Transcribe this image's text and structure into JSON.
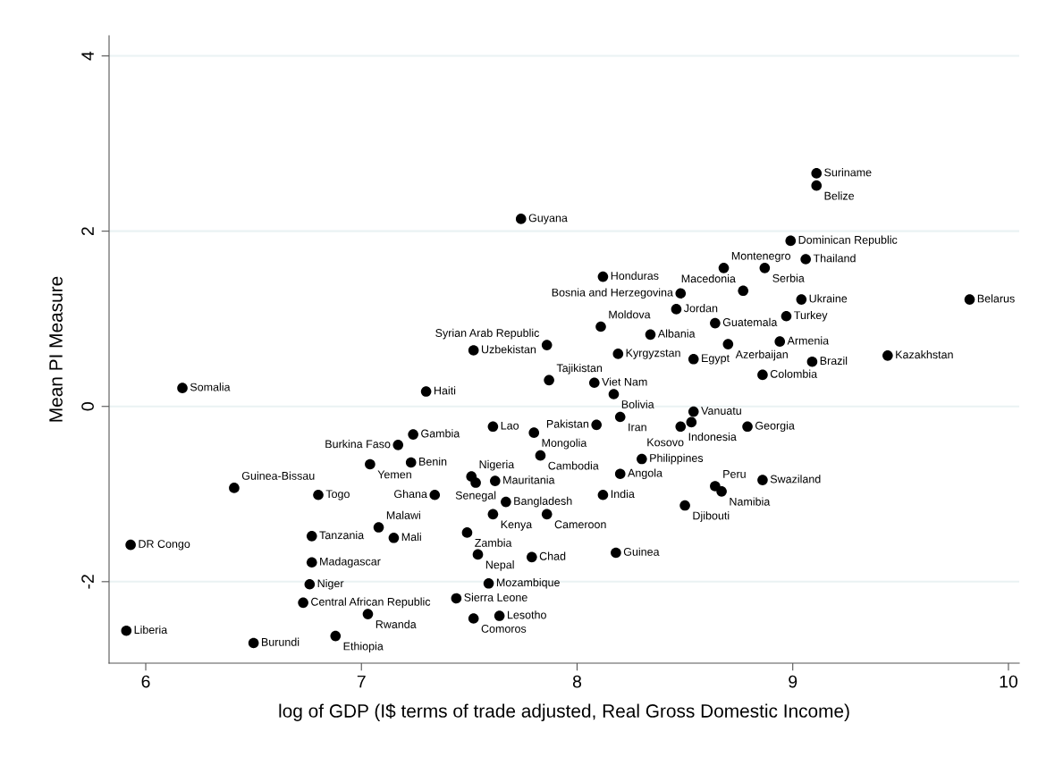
{
  "chart_data": {
    "type": "scatter",
    "xlabel": "log of GDP (I$ terms of trade adjusted, Real Gross Domestic Income)",
    "ylabel": "Mean PI Measure",
    "xlim": [
      5.83,
      10.05
    ],
    "ylim": [
      -2.93,
      4.23
    ],
    "xticks": [
      6,
      7,
      8,
      9,
      10
    ],
    "yticks": [
      -2,
      0,
      2,
      4
    ],
    "grid": "y",
    "marker": "circle",
    "legend": false,
    "series": [
      {
        "color": "#000000",
        "x": [
          9.11,
          9.11,
          7.74,
          8.99,
          9.06,
          8.68,
          8.87,
          8.12,
          8.48,
          8.77,
          9.04,
          9.82,
          8.46,
          8.97,
          8.64,
          8.11,
          8.34,
          8.94,
          8.7,
          7.52,
          7.86,
          8.19,
          8.54,
          9.44,
          9.09,
          8.86,
          7.87,
          8.08,
          8.17,
          6.17,
          7.3,
          8.54,
          8.2,
          8.09,
          7.61,
          7.8,
          8.48,
          8.53,
          8.79,
          7.24,
          7.17,
          7.04,
          7.23,
          7.83,
          8.3,
          7.51,
          7.53,
          7.62,
          8.2,
          8.86,
          6.41,
          6.8,
          7.34,
          8.64,
          8.67,
          8.12,
          7.67,
          8.5,
          7.61,
          7.86,
          7.08,
          7.15,
          6.77,
          7.49,
          5.93,
          7.54,
          7.79,
          8.18,
          6.77,
          7.59,
          6.76,
          7.44,
          6.73,
          7.03,
          7.64,
          7.52,
          5.91,
          6.5,
          6.88
        ],
        "values": [
          2.66,
          2.52,
          2.14,
          1.89,
          1.68,
          1.58,
          1.58,
          1.48,
          1.29,
          1.32,
          1.22,
          1.22,
          1.11,
          1.03,
          0.95,
          0.91,
          0.82,
          0.74,
          0.71,
          0.64,
          0.7,
          0.6,
          0.54,
          0.58,
          0.51,
          0.36,
          0.3,
          0.27,
          0.14,
          0.21,
          0.17,
          -0.06,
          -0.12,
          -0.21,
          -0.23,
          -0.3,
          -0.23,
          -0.18,
          -0.23,
          -0.32,
          -0.44,
          -0.66,
          -0.64,
          -0.56,
          -0.6,
          -0.8,
          -0.87,
          -0.85,
          -0.77,
          -0.84,
          -0.93,
          -1.01,
          -1.01,
          -0.91,
          -0.97,
          -1.01,
          -1.09,
          -1.13,
          -1.23,
          -1.23,
          -1.38,
          -1.5,
          -1.48,
          -1.44,
          -1.58,
          -1.69,
          -1.72,
          -1.67,
          -1.78,
          -2.02,
          -2.03,
          -2.19,
          -2.24,
          -2.37,
          -2.39,
          -2.42,
          -2.56,
          -2.7,
          -2.62
        ]
      }
    ],
    "annotations": [
      {
        "text": "Suriname",
        "x": 9.11,
        "y": 2.66
      },
      {
        "text": "Belize",
        "x": 9.11,
        "y": 2.52
      },
      {
        "text": "Guyana",
        "x": 7.74,
        "y": 2.14
      },
      {
        "text": "Dominican Republic",
        "x": 8.99,
        "y": 1.89
      },
      {
        "text": "Thailand",
        "x": 9.06,
        "y": 1.68
      },
      {
        "text": "Montenegro",
        "x": 8.68,
        "y": 1.58
      },
      {
        "text": "Serbia",
        "x": 8.87,
        "y": 1.58
      },
      {
        "text": "Honduras",
        "x": 8.12,
        "y": 1.48
      },
      {
        "text": "Bosnia and Herzegovina",
        "x": 8.48,
        "y": 1.29
      },
      {
        "text": "Macedonia",
        "x": 8.77,
        "y": 1.32
      },
      {
        "text": "Ukraine",
        "x": 9.04,
        "y": 1.22
      },
      {
        "text": "Belarus",
        "x": 9.82,
        "y": 1.22
      },
      {
        "text": "Jordan",
        "x": 8.46,
        "y": 1.11
      },
      {
        "text": "Turkey",
        "x": 8.97,
        "y": 1.03
      },
      {
        "text": "Guatemala",
        "x": 8.64,
        "y": 0.95
      },
      {
        "text": "Moldova",
        "x": 8.11,
        "y": 0.91
      },
      {
        "text": "Albania",
        "x": 8.34,
        "y": 0.82
      },
      {
        "text": "Armenia",
        "x": 8.94,
        "y": 0.74
      },
      {
        "text": "Azerbaijan",
        "x": 8.7,
        "y": 0.71
      },
      {
        "text": "Uzbekistan",
        "x": 7.52,
        "y": 0.64
      },
      {
        "text": "Syrian Arab Republic",
        "x": 7.86,
        "y": 0.7
      },
      {
        "text": "Kyrgyzstan",
        "x": 8.19,
        "y": 0.6
      },
      {
        "text": "Egypt",
        "x": 8.54,
        "y": 0.54
      },
      {
        "text": "Kazakhstan",
        "x": 9.44,
        "y": 0.58
      },
      {
        "text": "Brazil",
        "x": 9.09,
        "y": 0.51
      },
      {
        "text": "Colombia",
        "x": 8.86,
        "y": 0.36
      },
      {
        "text": "Tajikistan",
        "x": 7.87,
        "y": 0.3
      },
      {
        "text": "Viet Nam",
        "x": 8.08,
        "y": 0.27
      },
      {
        "text": "Bolivia",
        "x": 8.17,
        "y": 0.14
      },
      {
        "text": "Somalia",
        "x": 6.17,
        "y": 0.21
      },
      {
        "text": "Haiti",
        "x": 7.3,
        "y": 0.17
      },
      {
        "text": "Vanuatu",
        "x": 8.54,
        "y": -0.06
      },
      {
        "text": "Iran",
        "x": 8.2,
        "y": -0.12
      },
      {
        "text": "Pakistan",
        "x": 8.09,
        "y": -0.21
      },
      {
        "text": "Lao",
        "x": 7.61,
        "y": -0.23
      },
      {
        "text": "Mongolia",
        "x": 7.8,
        "y": -0.3
      },
      {
        "text": "Indonesia",
        "x": 8.48,
        "y": -0.23
      },
      {
        "text": "Kosovo",
        "x": 8.53,
        "y": -0.18
      },
      {
        "text": "Georgia",
        "x": 8.79,
        "y": -0.23
      },
      {
        "text": "Gambia",
        "x": 7.24,
        "y": -0.32
      },
      {
        "text": "Burkina Faso",
        "x": 7.17,
        "y": -0.44
      },
      {
        "text": "Yemen",
        "x": 7.04,
        "y": -0.66
      },
      {
        "text": "Benin",
        "x": 7.23,
        "y": -0.64
      },
      {
        "text": "Cambodia",
        "x": 7.83,
        "y": -0.56
      },
      {
        "text": "Philippines",
        "x": 8.3,
        "y": -0.6
      },
      {
        "text": "Nigeria",
        "x": 7.51,
        "y": -0.8
      },
      {
        "text": "Senegal",
        "x": 7.53,
        "y": -0.87
      },
      {
        "text": "Mauritania",
        "x": 7.62,
        "y": -0.85
      },
      {
        "text": "Angola",
        "x": 8.2,
        "y": -0.77
      },
      {
        "text": "Swaziland",
        "x": 8.86,
        "y": -0.84
      },
      {
        "text": "Guinea-Bissau",
        "x": 6.41,
        "y": -0.93
      },
      {
        "text": "Togo",
        "x": 6.8,
        "y": -1.01
      },
      {
        "text": "Ghana",
        "x": 7.34,
        "y": -1.01
      },
      {
        "text": "Peru",
        "x": 8.64,
        "y": -0.91
      },
      {
        "text": "Namibia",
        "x": 8.67,
        "y": -0.97
      },
      {
        "text": "India",
        "x": 8.12,
        "y": -1.01
      },
      {
        "text": "Bangladesh",
        "x": 7.67,
        "y": -1.09
      },
      {
        "text": "Djibouti",
        "x": 8.5,
        "y": -1.13
      },
      {
        "text": "Kenya",
        "x": 7.61,
        "y": -1.23
      },
      {
        "text": "Cameroon",
        "x": 7.86,
        "y": -1.23
      },
      {
        "text": "Malawi",
        "x": 7.08,
        "y": -1.38
      },
      {
        "text": "Mali",
        "x": 7.15,
        "y": -1.5
      },
      {
        "text": "Tanzania",
        "x": 6.77,
        "y": -1.48
      },
      {
        "text": "Zambia",
        "x": 7.49,
        "y": -1.44
      },
      {
        "text": "DR Congo",
        "x": 5.93,
        "y": -1.58
      },
      {
        "text": "Nepal",
        "x": 7.54,
        "y": -1.69
      },
      {
        "text": "Chad",
        "x": 7.79,
        "y": -1.72
      },
      {
        "text": "Guinea",
        "x": 8.18,
        "y": -1.67
      },
      {
        "text": "Madagascar",
        "x": 6.77,
        "y": -1.78
      },
      {
        "text": "Mozambique",
        "x": 7.59,
        "y": -2.02
      },
      {
        "text": "Niger",
        "x": 6.76,
        "y": -2.03
      },
      {
        "text": "Sierra Leone",
        "x": 7.44,
        "y": -2.19
      },
      {
        "text": "Central African Republic",
        "x": 6.73,
        "y": -2.24
      },
      {
        "text": "Rwanda",
        "x": 7.03,
        "y": -2.37
      },
      {
        "text": "Lesotho",
        "x": 7.64,
        "y": -2.39
      },
      {
        "text": "Comoros",
        "x": 7.52,
        "y": -2.42
      },
      {
        "text": "Liberia",
        "x": 5.91,
        "y": -2.56
      },
      {
        "text": "Burundi",
        "x": 6.5,
        "y": -2.7
      },
      {
        "text": "Ethiopia",
        "x": 6.88,
        "y": -2.62
      }
    ]
  }
}
